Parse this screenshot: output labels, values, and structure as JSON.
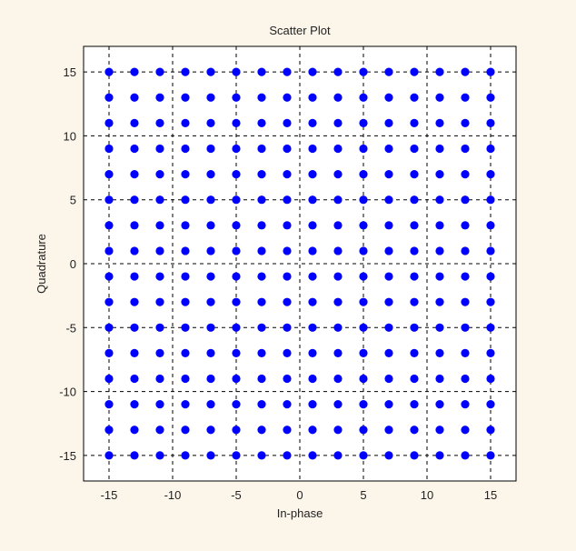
{
  "chart_data": {
    "type": "scatter",
    "title": "Scatter Plot",
    "xlabel": "In-phase",
    "ylabel": "Quadrature",
    "xlim": [
      -17,
      17
    ],
    "ylim": [
      -17,
      17
    ],
    "x_ticks": [
      -15,
      -10,
      -5,
      0,
      5,
      10,
      15
    ],
    "y_ticks": [
      -15,
      -10,
      -5,
      0,
      5,
      10,
      15
    ],
    "grid": true,
    "grid_style": "dashed",
    "marker_color": "#0000ff",
    "points_description_levels": {
      "in_phase": [
        -15,
        -13,
        -11,
        -9,
        -7,
        -5,
        -3,
        -1,
        1,
        3,
        5,
        7,
        9,
        11,
        13,
        15
      ],
      "quadrature": [
        -15,
        -13,
        -11,
        -9,
        -7,
        -5,
        -3,
        -1,
        1,
        3,
        5,
        7,
        9,
        11,
        13,
        15
      ]
    }
  }
}
